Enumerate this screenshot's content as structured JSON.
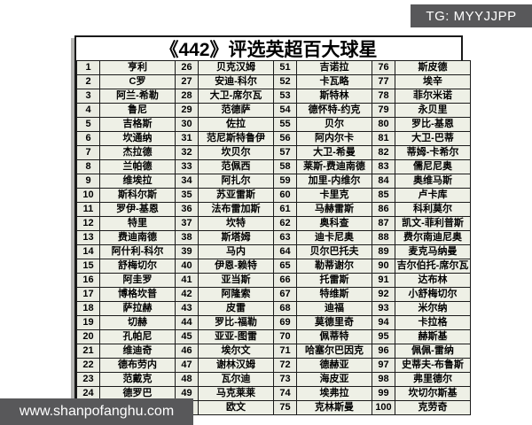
{
  "page": {
    "tg_badge": "TG: MYYJJPP",
    "watermark": "www.shanpofanghu.com"
  },
  "colors": {
    "cell_bg": "#eef0e6",
    "rank_cell_bg": "#e9ebe1",
    "border": "#1a1a1a",
    "badge_bg": "#58585a"
  },
  "table": {
    "title": "《442》评选英超百大球星",
    "rows_per_column": 25,
    "column_pairs": 4,
    "entries": [
      {
        "rank": "1",
        "name": "亨利"
      },
      {
        "rank": "2",
        "name": "C罗"
      },
      {
        "rank": "3",
        "name": "阿兰-希勒"
      },
      {
        "rank": "4",
        "name": "鲁尼"
      },
      {
        "rank": "5",
        "name": "吉格斯"
      },
      {
        "rank": "6",
        "name": "坎通纳"
      },
      {
        "rank": "7",
        "name": "杰拉德"
      },
      {
        "rank": "8",
        "name": "兰帕德"
      },
      {
        "rank": "9",
        "name": "维埃拉"
      },
      {
        "rank": "10",
        "name": "斯科尔斯"
      },
      {
        "rank": "11",
        "name": "罗伊-基恩"
      },
      {
        "rank": "12",
        "name": "特里"
      },
      {
        "rank": "13",
        "name": "费迪南德"
      },
      {
        "rank": "14",
        "name": "阿什利-科尔"
      },
      {
        "rank": "15",
        "name": "舒梅切尔"
      },
      {
        "rank": "16",
        "name": "阿圭罗"
      },
      {
        "rank": "17",
        "name": "博格坎普"
      },
      {
        "rank": "18",
        "name": "萨拉赫"
      },
      {
        "rank": "19",
        "name": "切赫"
      },
      {
        "rank": "20",
        "name": "孔帕尼"
      },
      {
        "rank": "21",
        "name": "维迪奇"
      },
      {
        "rank": "22",
        "name": "德布劳内"
      },
      {
        "rank": "23",
        "name": "范戴克"
      },
      {
        "rank": "24",
        "name": "德罗巴"
      },
      {
        "rank": "25",
        "name": "哈里-凯恩"
      },
      {
        "rank": "26",
        "name": "贝克汉姆"
      },
      {
        "rank": "27",
        "name": "安迪-科尔"
      },
      {
        "rank": "28",
        "name": "大卫-席尔瓦"
      },
      {
        "rank": "29",
        "name": "范德萨"
      },
      {
        "rank": "30",
        "name": "佐拉"
      },
      {
        "rank": "31",
        "name": "范尼斯特鲁伊"
      },
      {
        "rank": "32",
        "name": "坎贝尔"
      },
      {
        "rank": "33",
        "name": "范佩西"
      },
      {
        "rank": "34",
        "name": "阿扎尔"
      },
      {
        "rank": "35",
        "name": "苏亚雷斯"
      },
      {
        "rank": "36",
        "name": "法布雷加斯"
      },
      {
        "rank": "37",
        "name": "坎特"
      },
      {
        "rank": "38",
        "name": "斯塔姆"
      },
      {
        "rank": "39",
        "name": "马内"
      },
      {
        "rank": "40",
        "name": "伊恩-赖特"
      },
      {
        "rank": "41",
        "name": "亚当斯"
      },
      {
        "rank": "42",
        "name": "阿隆索"
      },
      {
        "rank": "43",
        "name": "皮雷"
      },
      {
        "rank": "44",
        "name": "罗比-福勒"
      },
      {
        "rank": "45",
        "name": "亚亚-图雷"
      },
      {
        "rank": "46",
        "name": "埃尔文"
      },
      {
        "rank": "47",
        "name": "谢林汉姆"
      },
      {
        "rank": "48",
        "name": "瓦尔迪"
      },
      {
        "rank": "49",
        "name": "马克莱莱"
      },
      {
        "rank": "50",
        "name": "欧文"
      },
      {
        "rank": "51",
        "name": "吉诺拉"
      },
      {
        "rank": "52",
        "name": "卡瓦略"
      },
      {
        "rank": "53",
        "name": "斯特林"
      },
      {
        "rank": "54",
        "name": "德怀特-约克"
      },
      {
        "rank": "55",
        "name": "贝尔"
      },
      {
        "rank": "56",
        "name": "阿内尔卡"
      },
      {
        "rank": "57",
        "name": "大卫-希曼"
      },
      {
        "rank": "58",
        "name": "莱斯-费迪南德"
      },
      {
        "rank": "59",
        "name": "加里-内维尔"
      },
      {
        "rank": "60",
        "name": "卡里克"
      },
      {
        "rank": "61",
        "name": "马赫雷斯"
      },
      {
        "rank": "62",
        "name": "奥科查"
      },
      {
        "rank": "63",
        "name": "迪卡尼奥"
      },
      {
        "rank": "64",
        "name": "贝尔巴托夫"
      },
      {
        "rank": "65",
        "name": "勒蒂谢尔"
      },
      {
        "rank": "66",
        "name": "托雷斯"
      },
      {
        "rank": "67",
        "name": "特维斯"
      },
      {
        "rank": "68",
        "name": "迪福"
      },
      {
        "rank": "69",
        "name": "莫德里奇"
      },
      {
        "rank": "70",
        "name": "佩蒂特"
      },
      {
        "rank": "71",
        "name": "哈塞尔巴因克"
      },
      {
        "rank": "72",
        "name": "德赫亚"
      },
      {
        "rank": "73",
        "name": "海皮亚"
      },
      {
        "rank": "74",
        "name": "埃弗拉"
      },
      {
        "rank": "75",
        "name": "克林斯曼"
      },
      {
        "rank": "76",
        "name": "斯皮德"
      },
      {
        "rank": "77",
        "name": "埃辛"
      },
      {
        "rank": "78",
        "name": "菲尔米诺"
      },
      {
        "rank": "79",
        "name": "永贝里"
      },
      {
        "rank": "80",
        "name": "罗比-基恩"
      },
      {
        "rank": "81",
        "name": "大卫-巴蒂"
      },
      {
        "rank": "82",
        "name": "蒂姆-卡希尔"
      },
      {
        "rank": "83",
        "name": "儒尼尼奥"
      },
      {
        "rank": "84",
        "name": "奥维马斯"
      },
      {
        "rank": "85",
        "name": "卢卡库"
      },
      {
        "rank": "86",
        "name": "科利莫尔"
      },
      {
        "rank": "87",
        "name": "凯文-菲利普斯"
      },
      {
        "rank": "88",
        "name": "费尔南迪尼奥"
      },
      {
        "rank": "89",
        "name": "麦克马纳曼"
      },
      {
        "rank": "90",
        "name": "吉尔伯托-席尔瓦"
      },
      {
        "rank": "91",
        "name": "达布林"
      },
      {
        "rank": "92",
        "name": "小舒梅切尔"
      },
      {
        "rank": "93",
        "name": "米尔纳"
      },
      {
        "rank": "94",
        "name": "卡拉格"
      },
      {
        "rank": "95",
        "name": "赫斯基"
      },
      {
        "rank": "96",
        "name": "佩佩-雷纳"
      },
      {
        "rank": "97",
        "name": "史蒂夫-布鲁斯"
      },
      {
        "rank": "98",
        "name": "弗里德尔"
      },
      {
        "rank": "99",
        "name": "坎切尔斯基"
      },
      {
        "rank": "100",
        "name": "克劳奇"
      }
    ]
  }
}
